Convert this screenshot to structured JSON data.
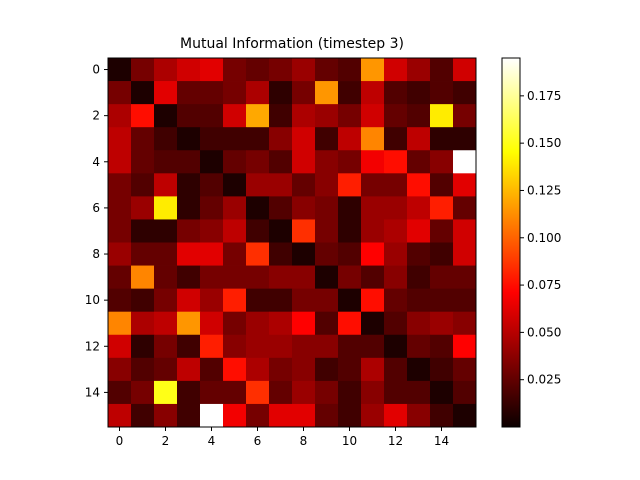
{
  "chart_data": {
    "type": "heatmap",
    "title": "Mutual Information (timestep 3)",
    "colormap": "hot",
    "vmin": 0.0,
    "vmax": 0.195,
    "x_ticks": [
      0,
      2,
      4,
      6,
      8,
      10,
      12,
      14
    ],
    "y_ticks": [
      0,
      2,
      4,
      6,
      8,
      10,
      12,
      14
    ],
    "colorbar_ticks": [
      0.025,
      0.05,
      0.075,
      0.1,
      0.125,
      0.15,
      0.175
    ],
    "colorbar_tick_labels": [
      "0.025",
      "0.050",
      "0.075",
      "0.100",
      "0.125",
      "0.150",
      "0.175"
    ],
    "rows": 16,
    "cols": 16,
    "values": [
      [
        0.005,
        0.03,
        0.045,
        0.055,
        0.06,
        0.03,
        0.025,
        0.03,
        0.04,
        0.025,
        0.02,
        0.115,
        0.055,
        0.04,
        0.02,
        0.055
      ],
      [
        0.03,
        0.005,
        0.06,
        0.025,
        0.025,
        0.03,
        0.045,
        0.01,
        0.03,
        0.115,
        0.015,
        0.05,
        0.02,
        0.015,
        0.02,
        0.015
      ],
      [
        0.045,
        0.075,
        0.005,
        0.02,
        0.02,
        0.055,
        0.12,
        0.015,
        0.045,
        0.04,
        0.03,
        0.055,
        0.025,
        0.02,
        0.14,
        0.03
      ],
      [
        0.05,
        0.025,
        0.015,
        0.005,
        0.015,
        0.015,
        0.015,
        0.035,
        0.055,
        0.015,
        0.05,
        0.11,
        0.015,
        0.05,
        0.01,
        0.01
      ],
      [
        0.05,
        0.025,
        0.02,
        0.02,
        0.005,
        0.025,
        0.03,
        0.02,
        0.055,
        0.035,
        0.03,
        0.065,
        0.075,
        0.025,
        0.035,
        0.195
      ],
      [
        0.03,
        0.02,
        0.05,
        0.01,
        0.02,
        0.005,
        0.04,
        0.04,
        0.025,
        0.035,
        0.08,
        0.03,
        0.03,
        0.075,
        0.02,
        0.06
      ],
      [
        0.03,
        0.04,
        0.14,
        0.01,
        0.025,
        0.04,
        0.005,
        0.02,
        0.035,
        0.03,
        0.01,
        0.04,
        0.04,
        0.05,
        0.08,
        0.025
      ],
      [
        0.03,
        0.01,
        0.01,
        0.03,
        0.035,
        0.05,
        0.015,
        0.005,
        0.085,
        0.03,
        0.01,
        0.04,
        0.045,
        0.06,
        0.025,
        0.055
      ],
      [
        0.04,
        0.025,
        0.025,
        0.06,
        0.06,
        0.03,
        0.085,
        0.015,
        0.005,
        0.025,
        0.02,
        0.07,
        0.04,
        0.02,
        0.015,
        0.055
      ],
      [
        0.025,
        0.11,
        0.025,
        0.015,
        0.03,
        0.03,
        0.03,
        0.035,
        0.035,
        0.005,
        0.03,
        0.02,
        0.035,
        0.015,
        0.025,
        0.025
      ],
      [
        0.02,
        0.015,
        0.03,
        0.055,
        0.04,
        0.08,
        0.015,
        0.015,
        0.03,
        0.03,
        0.005,
        0.075,
        0.025,
        0.02,
        0.02,
        0.02
      ],
      [
        0.11,
        0.045,
        0.05,
        0.115,
        0.055,
        0.03,
        0.04,
        0.045,
        0.07,
        0.02,
        0.075,
        0.005,
        0.02,
        0.035,
        0.04,
        0.035
      ],
      [
        0.055,
        0.01,
        0.03,
        0.015,
        0.08,
        0.035,
        0.04,
        0.04,
        0.035,
        0.035,
        0.02,
        0.02,
        0.005,
        0.025,
        0.02,
        0.07
      ],
      [
        0.035,
        0.02,
        0.025,
        0.05,
        0.02,
        0.075,
        0.045,
        0.03,
        0.035,
        0.015,
        0.02,
        0.045,
        0.02,
        0.005,
        0.015,
        0.025
      ],
      [
        0.02,
        0.03,
        0.15,
        0.015,
        0.025,
        0.025,
        0.085,
        0.025,
        0.04,
        0.03,
        0.015,
        0.035,
        0.02,
        0.02,
        0.005,
        0.02
      ],
      [
        0.05,
        0.015,
        0.035,
        0.015,
        0.195,
        0.065,
        0.03,
        0.06,
        0.06,
        0.025,
        0.015,
        0.04,
        0.06,
        0.035,
        0.015,
        0.005
      ]
    ]
  }
}
